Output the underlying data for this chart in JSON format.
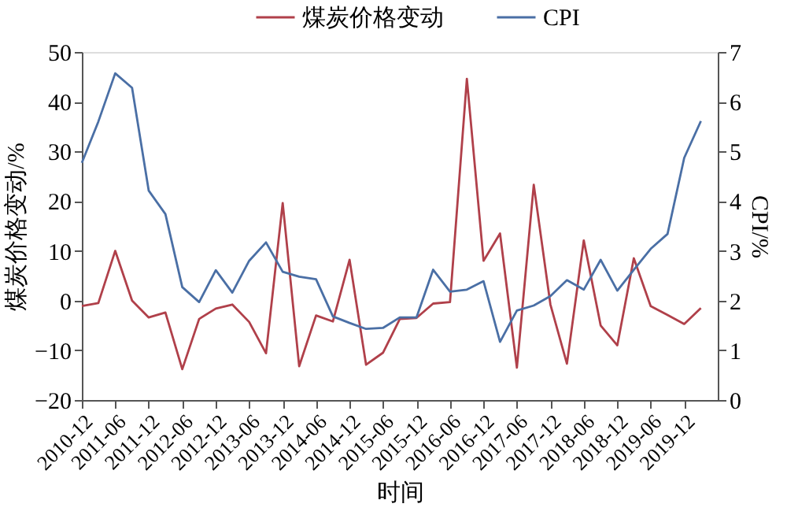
{
  "chart_data": {
    "type": "line",
    "xlabel": "时间",
    "ylabel": "煤炭价格变动/%",
    "y2label": "CPI/%",
    "x": [
      "2010-12",
      "2011-03",
      "2011-06",
      "2011-09",
      "2011-12",
      "2012-03",
      "2012-06",
      "2012-09",
      "2012-12",
      "2013-03",
      "2013-06",
      "2013-09",
      "2013-12",
      "2014-03",
      "2014-06",
      "2014-09",
      "2014-12",
      "2015-03",
      "2015-06",
      "2015-09",
      "2015-12",
      "2016-03",
      "2016-06",
      "2016-09",
      "2016-12",
      "2017-03",
      "2017-06",
      "2017-09",
      "2017-12",
      "2018-03",
      "2018-06",
      "2018-09",
      "2018-12",
      "2019-03",
      "2019-06",
      "2019-09",
      "2019-12",
      "2020-03"
    ],
    "series": [
      {
        "name": "煤炭价格变动",
        "color": "#b0404a",
        "values": [
          -1.1,
          -0.5,
          10.0,
          0.0,
          -3.4,
          -2.4,
          -13.8,
          -3.7,
          -1.6,
          -0.8,
          -4.3,
          -10.6,
          19.6,
          -13.2,
          -3.0,
          -4.2,
          8.2,
          -12.9,
          -10.5,
          -3.7,
          -3.5,
          -0.6,
          -0.3,
          44.6,
          8.0,
          13.5,
          -13.5,
          23.3,
          -0.8,
          -12.7,
          12.1,
          -5.0,
          -9.0,
          8.5,
          -1.1,
          -2.9,
          -4.7,
          -1.5
        ]
      },
      {
        "name": "CPI",
        "color": "#4a6fa5",
        "axis": "y2",
        "values": [
          4.77,
          5.6,
          6.57,
          6.28,
          4.21,
          3.74,
          2.27,
          1.97,
          2.61,
          2.16,
          2.8,
          3.17,
          2.58,
          2.48,
          2.43,
          1.68,
          1.55,
          1.43,
          1.45,
          1.66,
          1.66,
          2.62,
          2.18,
          2.22,
          2.39,
          1.17,
          1.8,
          1.9,
          2.09,
          2.41,
          2.22,
          2.82,
          2.2,
          2.62,
          3.04,
          3.34,
          4.87,
          5.61
        ]
      }
    ],
    "xlim": [
      "2010-12",
      "2020-06"
    ],
    "xticks": [
      "2010-12",
      "2011-06",
      "2011-12",
      "2012-06",
      "2012-12",
      "2013-06",
      "2013-12",
      "2014-06",
      "2014-12",
      "2015-06",
      "2015-12",
      "2016-06",
      "2016-12",
      "2017-06",
      "2017-12",
      "2018-06",
      "2018-12",
      "2019-06",
      "2019-12"
    ],
    "ylim": [
      -20,
      50
    ],
    "yticks": [
      -20,
      -10,
      0,
      10,
      20,
      30,
      40,
      50
    ],
    "y2lim": [
      0,
      7
    ],
    "y2ticks": [
      0,
      1,
      2,
      3,
      4,
      5,
      6,
      7
    ],
    "grid": false,
    "legend": "top",
    "marker": "none",
    "line_style": "solid"
  }
}
